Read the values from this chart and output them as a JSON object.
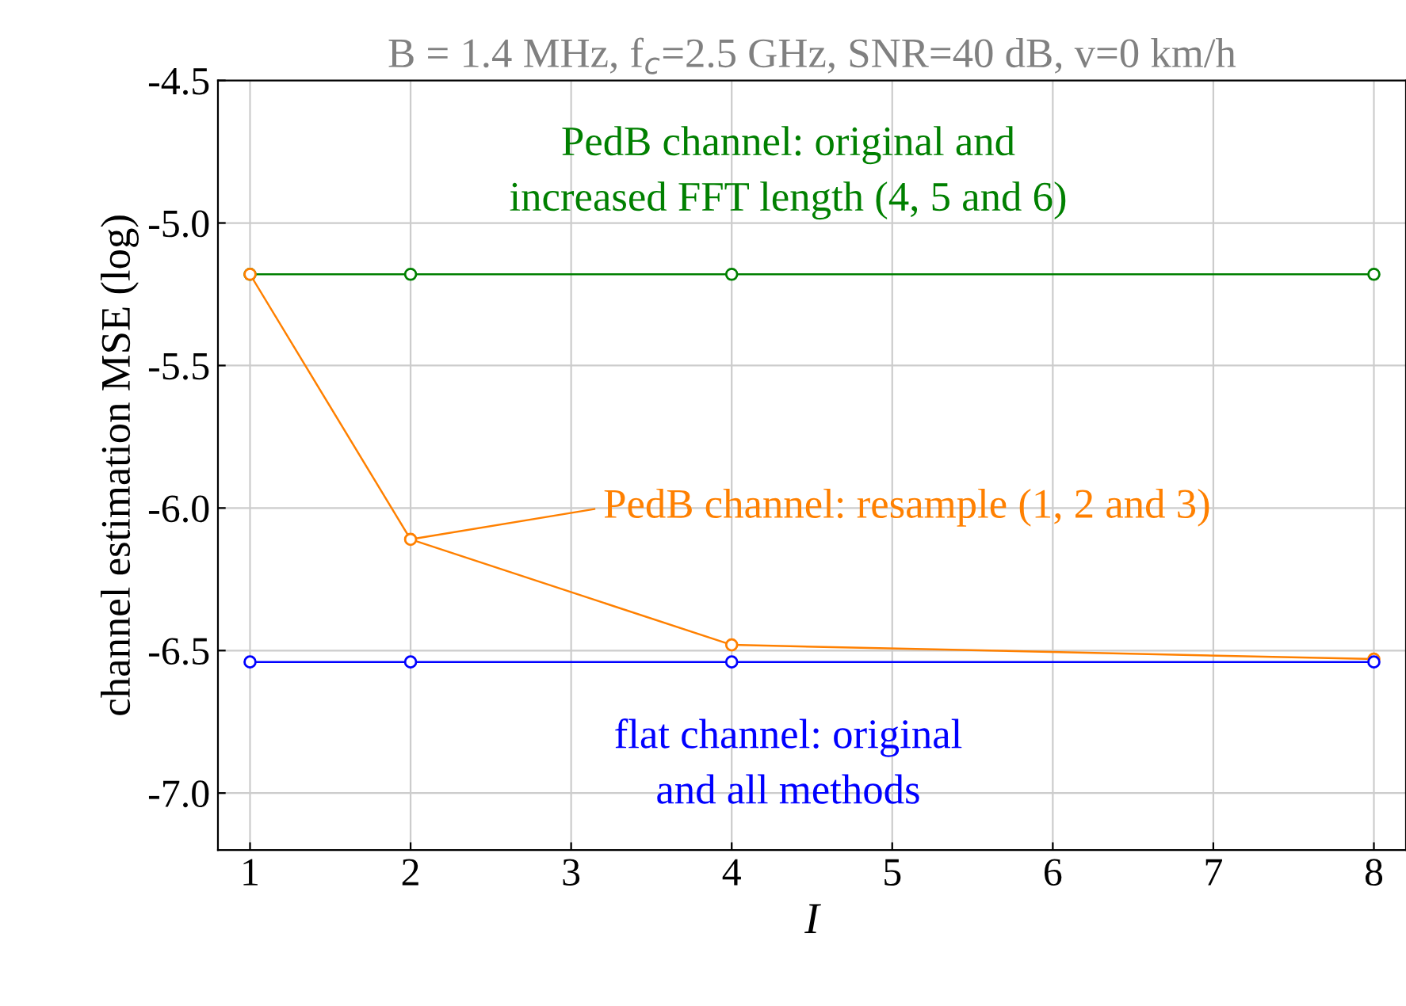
{
  "chart_data": {
    "type": "line",
    "title": "B = 1.4 MHz, f$_{c}$=2.5 GHz, SNR=40 dB, v=0 km/h",
    "xlabel": "I",
    "ylabel": "channel estimation MSE (log)",
    "x": [
      1,
      2,
      4,
      8
    ],
    "series": [
      {
        "name": "PedB channel: original and\nincreased FFT length (4, 5 and 6)",
        "color": "#008000",
        "values": [
          -5.18,
          -5.18,
          -5.18,
          -5.18
        ]
      },
      {
        "name": "PedB channel: resample (1, 2 and 3)",
        "color": "#ff8000",
        "values": [
          -5.18,
          -6.11,
          -6.48,
          -6.53
        ]
      },
      {
        "name": "flat channel: original\nand all methods",
        "color": "#0000ff",
        "values": [
          -6.54,
          -6.54,
          -6.54,
          -6.54
        ]
      }
    ],
    "xlim": [
      0.8,
      8.2
    ],
    "ylim": [
      -7.2,
      -4.5
    ],
    "xticks": [
      1,
      2,
      3,
      4,
      5,
      6,
      7,
      8
    ],
    "yticks": [
      {
        "value": -7,
        "label": "-7.0"
      },
      -6.5,
      {
        "value": -6,
        "label": "-6.0"
      },
      -5.5,
      {
        "value": -5,
        "label": "-5.0"
      },
      -4.5
    ],
    "grid": true,
    "marker": "circle",
    "line_style": "solid"
  }
}
